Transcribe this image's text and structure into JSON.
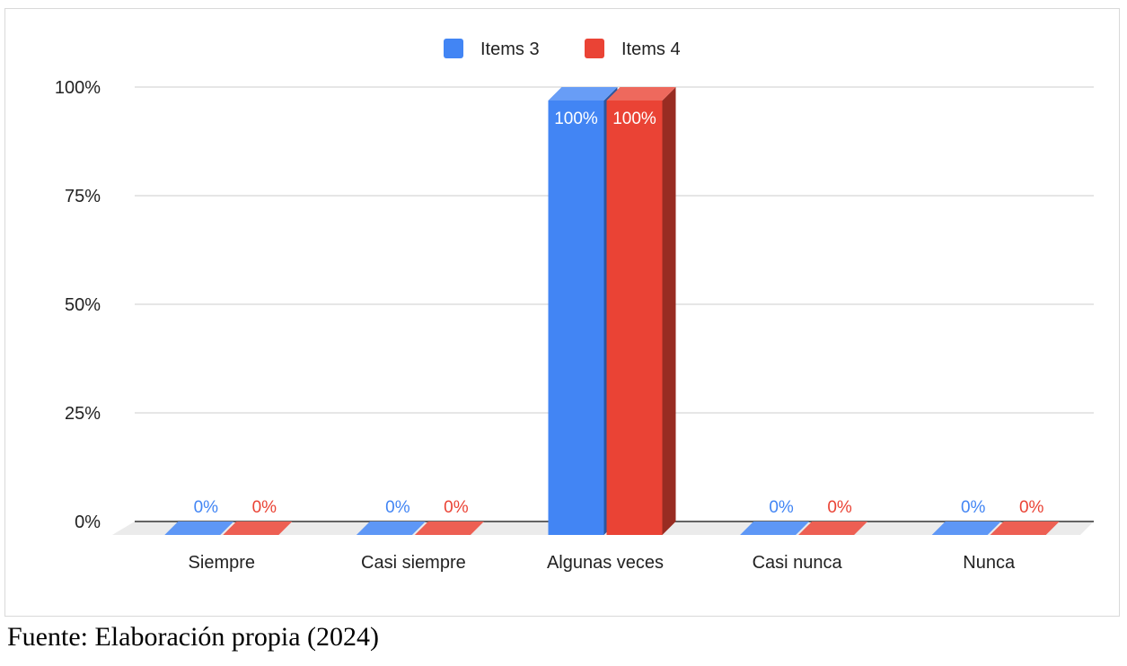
{
  "chart_data": {
    "type": "bar",
    "categories": [
      "Siempre",
      "Casi siempre",
      "Algunas veces",
      "Casi nunca",
      "Nunca"
    ],
    "series": [
      {
        "name": "Items 3",
        "values": [
          0,
          0,
          100,
          0,
          0
        ],
        "labels": [
          "0%",
          "0%",
          "100%",
          "0%",
          "0%"
        ],
        "color": "#4285f4"
      },
      {
        "name": "Items 4",
        "values": [
          0,
          0,
          100,
          0,
          0
        ],
        "labels": [
          "0%",
          "0%",
          "100%",
          "0%",
          "0%"
        ],
        "color": "#ea4335"
      }
    ],
    "ylim": [
      0,
      100
    ],
    "yticks": [
      0,
      25,
      50,
      75,
      100
    ],
    "ytick_labels": [
      "0%",
      "25%",
      "50%",
      "75%",
      "100%"
    ],
    "grid": true,
    "legend": "top-center",
    "style": "3d-bar"
  },
  "source_note": "Fuente: Elaboración propia (2024)"
}
